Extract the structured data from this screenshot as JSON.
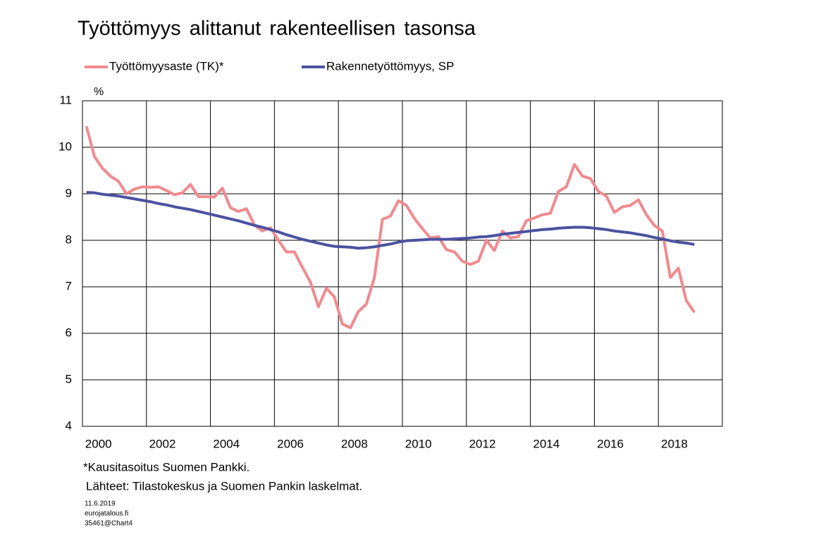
{
  "chart_data": {
    "type": "line",
    "title": "Työttömyys alittanut rakenteellisen tasonsa",
    "y_unit": "%",
    "footnote": "*Kausitasoitus Suomen Pankki.",
    "source": "Lähteet: Tilastokeskus ja Suomen Pankin laskelmat.",
    "meta": [
      "11.6.2019",
      "eurojatalous.fi",
      "35461@Chart4"
    ],
    "x": [
      2000.125,
      2000.375,
      2000.625,
      2000.875,
      2001.125,
      2001.375,
      2001.625,
      2001.875,
      2002.125,
      2002.375,
      2002.625,
      2002.875,
      2003.125,
      2003.375,
      2003.625,
      2003.875,
      2004.125,
      2004.375,
      2004.625,
      2004.875,
      2005.125,
      2005.375,
      2005.625,
      2005.875,
      2006.125,
      2006.375,
      2006.625,
      2006.875,
      2007.125,
      2007.375,
      2007.625,
      2007.875,
      2008.125,
      2008.375,
      2008.625,
      2008.875,
      2009.125,
      2009.375,
      2009.625,
      2009.875,
      2010.125,
      2010.375,
      2010.625,
      2010.875,
      2011.125,
      2011.375,
      2011.625,
      2011.875,
      2012.125,
      2012.375,
      2012.625,
      2012.875,
      2013.125,
      2013.375,
      2013.625,
      2013.875,
      2014.125,
      2014.375,
      2014.625,
      2014.875,
      2015.125,
      2015.375,
      2015.625,
      2015.875,
      2016.125,
      2016.375,
      2016.625,
      2016.875,
      2017.125,
      2017.375,
      2017.625,
      2017.875,
      2018.125,
      2018.375,
      2018.625,
      2018.875,
      2019.125
    ],
    "series": [
      {
        "name": "Työttömyysaste (TK)*",
        "color": "#f08a8f",
        "values": [
          10.45,
          9.8,
          9.55,
          9.38,
          9.27,
          9.0,
          9.1,
          9.15,
          9.14,
          9.15,
          9.07,
          8.98,
          9.02,
          9.2,
          8.94,
          8.94,
          8.93,
          9.12,
          8.7,
          8.62,
          8.68,
          8.33,
          8.2,
          8.27,
          8.0,
          7.75,
          7.75,
          7.42,
          7.1,
          6.57,
          6.97,
          6.78,
          6.2,
          6.12,
          6.47,
          6.63,
          7.2,
          8.45,
          8.52,
          8.85,
          8.75,
          8.47,
          8.25,
          8.05,
          8.08,
          7.8,
          7.75,
          7.55,
          7.48,
          7.55,
          8.0,
          7.78,
          8.2,
          8.05,
          8.08,
          8.42,
          8.48,
          8.55,
          8.58,
          9.05,
          9.15,
          9.63,
          9.38,
          9.33,
          9.05,
          8.95,
          8.6,
          8.72,
          8.75,
          8.87,
          8.55,
          8.32,
          8.2,
          7.2,
          7.4,
          6.7,
          6.45
        ]
      },
      {
        "name": "Rakennetyöttömyys, SP",
        "color": "#4b52a0",
        "values": [
          9.03,
          9.02,
          8.99,
          8.97,
          8.95,
          8.92,
          8.89,
          8.86,
          8.83,
          8.79,
          8.76,
          8.72,
          8.69,
          8.66,
          8.62,
          8.58,
          8.54,
          8.5,
          8.46,
          8.42,
          8.37,
          8.32,
          8.28,
          8.23,
          8.18,
          8.12,
          8.07,
          8.02,
          7.98,
          7.94,
          7.9,
          7.87,
          7.86,
          7.85,
          7.83,
          7.84,
          7.86,
          7.89,
          7.92,
          7.96,
          7.99,
          8.0,
          8.01,
          8.02,
          8.02,
          8.02,
          8.03,
          8.04,
          8.05,
          8.07,
          8.08,
          8.1,
          8.13,
          8.15,
          8.17,
          8.19,
          8.21,
          8.23,
          8.24,
          8.26,
          8.27,
          8.28,
          8.28,
          8.27,
          8.25,
          8.23,
          8.2,
          8.18,
          8.16,
          8.13,
          8.1,
          8.06,
          8.03,
          7.99,
          7.96,
          7.94,
          7.91
        ]
      }
    ],
    "xlim": [
      2000,
      2020
    ],
    "xticks": [
      2000,
      2002,
      2004,
      2006,
      2008,
      2010,
      2012,
      2014,
      2016,
      2018
    ],
    "ylim": [
      4,
      11
    ],
    "yticks": [
      4,
      5,
      6,
      7,
      8,
      9,
      10,
      11
    ],
    "grid": true
  }
}
